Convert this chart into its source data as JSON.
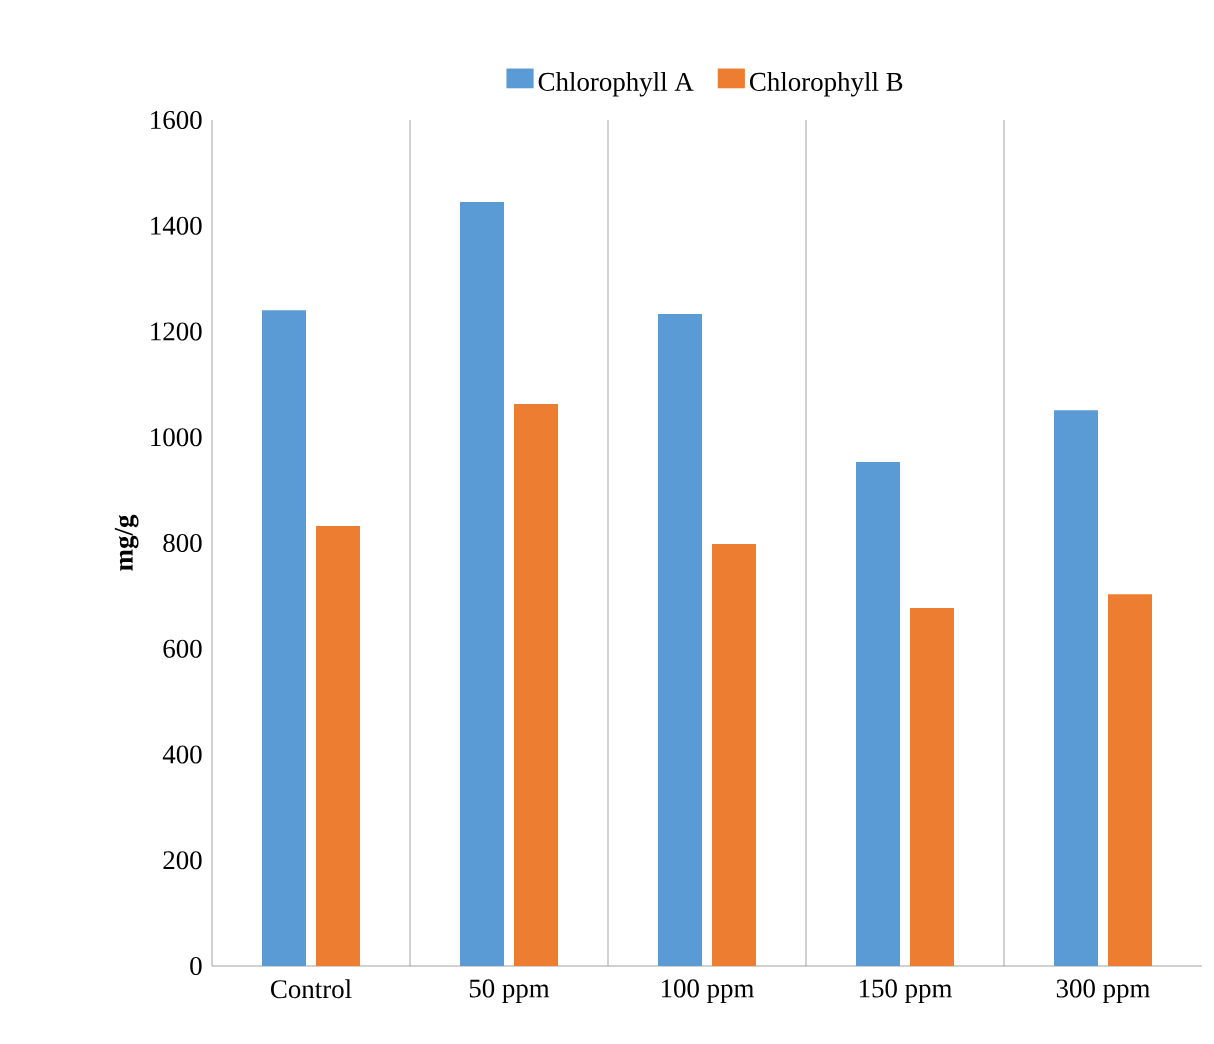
{
  "chart_data": {
    "type": "bar",
    "ylabel": "mg/g",
    "categories": [
      "Control",
      "50 ppm",
      "100 ppm",
      "150 ppm",
      "300 ppm"
    ],
    "series": [
      {
        "name": "Chlorophyll A",
        "color": "#5b9bd5",
        "values": [
          1240,
          1445,
          1233,
          953,
          1051
        ]
      },
      {
        "name": "Chlorophyll B",
        "color": "#ed7d31",
        "values": [
          832,
          1063,
          798,
          677,
          703
        ]
      }
    ],
    "ylim": [
      0,
      1600
    ],
    "yticks": [
      0,
      200,
      400,
      600,
      800,
      1000,
      1200,
      1400,
      1600
    ],
    "grid": "x",
    "legend": "top"
  }
}
